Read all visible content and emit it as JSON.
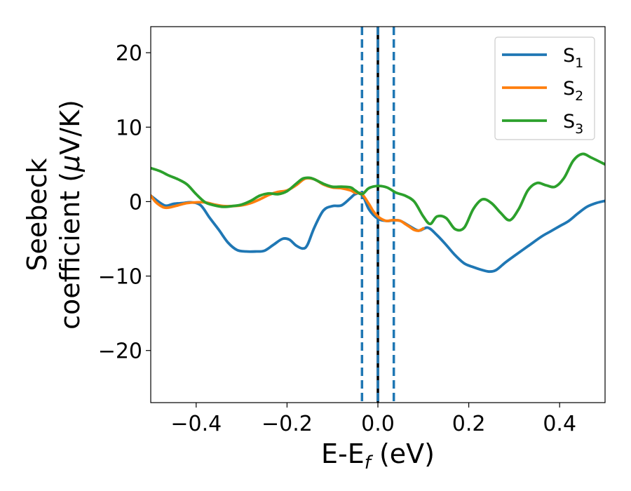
{
  "chart_data": {
    "type": "line",
    "title": "",
    "xlabel": {
      "main": "E-E",
      "sub": "f",
      "unit": " (eV)"
    },
    "ylabel": {
      "line1": "Seebeck",
      "line2": "coefficient  (",
      "mu": "μ",
      "line2_end": "V/K)"
    },
    "xlim": [
      -0.5,
      0.5
    ],
    "ylim": [
      -27,
      23.5
    ],
    "xticks": [
      -0.4,
      -0.2,
      0.0,
      0.2,
      0.4
    ],
    "xtick_labels": [
      "−0.4",
      "−0.2",
      "0.0",
      "0.2",
      "0.4"
    ],
    "yticks": [
      -20,
      -10,
      0,
      10,
      20
    ],
    "ytick_labels": [
      "−20",
      "−10",
      "0",
      "10",
      "20"
    ],
    "grid": false,
    "legend_position": "top-right",
    "vlines": [
      {
        "x": 0.0,
        "color": "#000000",
        "style": "solid"
      },
      {
        "x": -0.035,
        "color": "#1f77b4",
        "style": "dashed"
      },
      {
        "x": 0.0,
        "color": "#1f77b4",
        "style": "dashed"
      },
      {
        "x": 0.035,
        "color": "#1f77b4",
        "style": "dashed"
      }
    ],
    "series": [
      {
        "name": "S",
        "sub": "1",
        "color": "#1f77b4",
        "x": [
          -0.5,
          -0.47,
          -0.45,
          -0.43,
          -0.41,
          -0.39,
          -0.37,
          -0.35,
          -0.33,
          -0.31,
          -0.29,
          -0.27,
          -0.25,
          -0.23,
          -0.21,
          -0.195,
          -0.18,
          -0.165,
          -0.155,
          -0.14,
          -0.12,
          -0.1,
          -0.08,
          -0.06,
          -0.05,
          -0.035,
          -0.02,
          0.0,
          0.02,
          0.035,
          0.05,
          0.07,
          0.09,
          0.11,
          0.13,
          0.15,
          0.17,
          0.19,
          0.21,
          0.23,
          0.245,
          0.26,
          0.28,
          0.3,
          0.33,
          0.36,
          0.38,
          0.4,
          0.42,
          0.44,
          0.46,
          0.48,
          0.5
        ],
        "y": [
          0.8,
          -0.5,
          -0.3,
          -0.2,
          -0.1,
          -0.5,
          -2.2,
          -3.8,
          -5.5,
          -6.5,
          -6.7,
          -6.7,
          -6.6,
          -5.8,
          -5.0,
          -5.1,
          -5.9,
          -6.3,
          -5.8,
          -3.5,
          -1.2,
          -0.6,
          -0.5,
          0.5,
          1.0,
          1.0,
          -1.0,
          -2.3,
          -2.6,
          -2.5,
          -2.6,
          -3.3,
          -3.9,
          -3.5,
          -4.5,
          -5.8,
          -7.2,
          -8.3,
          -8.8,
          -9.2,
          -9.4,
          -9.2,
          -8.2,
          -7.3,
          -6.0,
          -4.7,
          -4.0,
          -3.3,
          -2.6,
          -1.6,
          -0.7,
          -0.2,
          0.1
        ]
      },
      {
        "name": "S",
        "sub": "2",
        "color": "#ff7f0e",
        "x": [
          -0.5,
          -0.49,
          -0.48,
          -0.47,
          -0.46,
          -0.44,
          -0.42,
          -0.4,
          -0.38,
          -0.36,
          -0.34,
          -0.32,
          -0.3,
          -0.28,
          -0.26,
          -0.24,
          -0.22,
          -0.2,
          -0.18,
          -0.16,
          -0.14,
          -0.12,
          -0.1,
          -0.08,
          -0.06,
          -0.05,
          -0.035,
          -0.02,
          -0.01,
          0.0,
          0.01,
          0.02,
          0.03,
          0.04,
          0.05,
          0.06,
          0.07,
          0.08,
          0.09,
          0.1
        ],
        "y": [
          0.8,
          0.0,
          -0.5,
          -0.8,
          -0.8,
          -0.5,
          -0.2,
          -0.1,
          -0.1,
          -0.4,
          -0.6,
          -0.6,
          -0.5,
          -0.2,
          0.3,
          0.9,
          1.3,
          1.5,
          2.2,
          3.1,
          3.0,
          2.3,
          1.9,
          1.8,
          1.5,
          1.2,
          1.0,
          -0.3,
          -1.3,
          -2.0,
          -2.4,
          -2.6,
          -2.5,
          -2.5,
          -2.6,
          -3.0,
          -3.4,
          -3.8,
          -3.9,
          -3.6
        ]
      },
      {
        "name": "S",
        "sub": "3",
        "color": "#2ca02c",
        "x": [
          -0.5,
          -0.48,
          -0.46,
          -0.44,
          -0.42,
          -0.4,
          -0.38,
          -0.36,
          -0.34,
          -0.32,
          -0.3,
          -0.28,
          -0.26,
          -0.24,
          -0.22,
          -0.2,
          -0.18,
          -0.165,
          -0.15,
          -0.14,
          -0.12,
          -0.1,
          -0.08,
          -0.06,
          -0.05,
          -0.035,
          -0.02,
          0.0,
          0.02,
          0.04,
          0.06,
          0.08,
          0.1,
          0.115,
          0.13,
          0.15,
          0.17,
          0.19,
          0.21,
          0.23,
          0.25,
          0.27,
          0.29,
          0.31,
          0.33,
          0.35,
          0.37,
          0.39,
          0.41,
          0.43,
          0.45,
          0.47,
          0.5
        ],
        "y": [
          4.5,
          4.1,
          3.5,
          3.0,
          2.3,
          1.0,
          -0.1,
          -0.5,
          -0.7,
          -0.6,
          -0.4,
          0.1,
          0.8,
          1.1,
          1.0,
          1.4,
          2.4,
          3.1,
          3.2,
          3.0,
          2.4,
          2.0,
          2.0,
          1.9,
          1.5,
          1.0,
          1.8,
          2.1,
          1.9,
          1.2,
          0.8,
          0.0,
          -2.0,
          -3.0,
          -2.0,
          -2.2,
          -3.7,
          -3.5,
          -1.0,
          0.3,
          -0.2,
          -1.5,
          -2.5,
          -1.0,
          1.5,
          2.5,
          2.2,
          2.0,
          3.2,
          5.5,
          6.4,
          5.9,
          5.0
        ]
      }
    ]
  }
}
